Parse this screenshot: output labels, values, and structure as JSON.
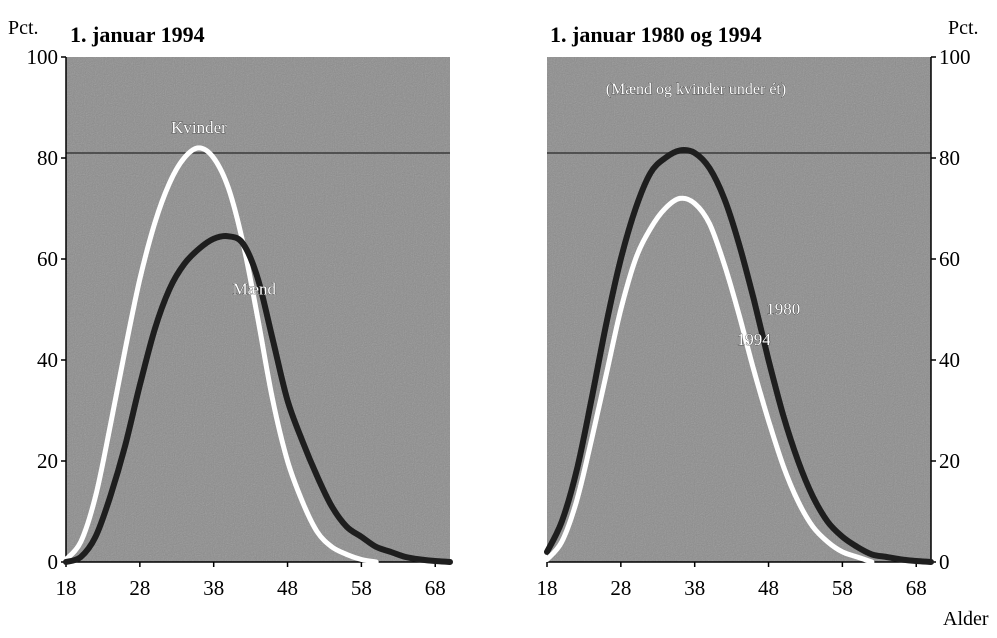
{
  "y_unit_label": "Pct.",
  "x_axis_label": "Alder",
  "colors": {
    "panel_bg": "#8c8c8c",
    "dark_line": "#1e1e1e",
    "light_line": "#ffffff",
    "reference_line": "#3a3a3a"
  },
  "chart_data": [
    {
      "type": "line",
      "title": "1. januar 1994",
      "subtitle": "",
      "ylabel": "Pct.",
      "xlabel": "",
      "xlim": [
        18,
        70
      ],
      "ylim": [
        0,
        100
      ],
      "xticks": [
        18,
        28,
        38,
        48,
        58,
        68
      ],
      "yticks": [
        0,
        20,
        40,
        60,
        80,
        100
      ],
      "reference_line_y": 81,
      "y_axis_side": "left",
      "series": [
        {
          "name": "Kvinder",
          "style": "light",
          "x": [
            18,
            20,
            22,
            24,
            26,
            28,
            30,
            32,
            34,
            36,
            38,
            40,
            42,
            44,
            46,
            48,
            50,
            52,
            54,
            56,
            58,
            60
          ],
          "y": [
            0.5,
            4,
            13,
            27,
            42,
            56,
            67,
            75,
            80,
            82,
            80,
            74,
            63,
            48,
            32,
            20,
            12,
            6,
            3,
            1.5,
            0.5,
            0
          ]
        },
        {
          "name": "Mænd",
          "style": "dark",
          "x": [
            18,
            20,
            22,
            24,
            26,
            28,
            30,
            32,
            34,
            36,
            38,
            40,
            42,
            44,
            46,
            48,
            50,
            52,
            54,
            56,
            58,
            60,
            62,
            64,
            66,
            68,
            70
          ],
          "y": [
            0,
            1,
            5,
            13,
            23,
            35,
            46,
            54,
            59,
            62,
            64,
            64.5,
            63,
            56,
            44,
            32,
            24,
            17,
            11,
            7,
            5,
            3,
            2,
            1,
            0.5,
            0.2,
            0
          ]
        }
      ]
    },
    {
      "type": "line",
      "title": "1. januar 1980 og 1994",
      "subtitle": "(Mænd og kvinder under ét)",
      "ylabel": "Pct.",
      "xlabel": "Alder",
      "xlim": [
        18,
        70
      ],
      "ylim": [
        0,
        100
      ],
      "xticks": [
        18,
        28,
        38,
        48,
        58,
        68
      ],
      "yticks": [
        0,
        20,
        40,
        60,
        80,
        100
      ],
      "reference_line_y": 81,
      "y_axis_side": "right",
      "series": [
        {
          "name": "1980",
          "style": "dark",
          "x": [
            18,
            20,
            22,
            24,
            26,
            28,
            30,
            32,
            34,
            36,
            38,
            40,
            42,
            44,
            46,
            48,
            50,
            52,
            54,
            56,
            58,
            60,
            62,
            64,
            66,
            68,
            70
          ],
          "y": [
            2,
            8,
            18,
            32,
            47,
            60,
            70,
            77,
            80,
            81.5,
            81,
            78,
            72,
            63,
            52,
            40,
            29,
            20,
            13,
            8,
            5,
            3,
            1.5,
            1,
            0.5,
            0.2,
            0
          ]
        },
        {
          "name": "1994",
          "style": "light",
          "x": [
            18,
            20,
            22,
            24,
            26,
            28,
            30,
            32,
            34,
            36,
            38,
            40,
            42,
            44,
            46,
            48,
            50,
            52,
            54,
            56,
            58,
            60,
            62
          ],
          "y": [
            0.5,
            4,
            12,
            24,
            37,
            50,
            60,
            66,
            70,
            72,
            71,
            67,
            59,
            49,
            38,
            28,
            19,
            12,
            7,
            4,
            2,
            1,
            0
          ]
        }
      ]
    }
  ],
  "annotations": [
    {
      "chart": 0,
      "text": "Kvinder",
      "x": 36,
      "y": 85
    },
    {
      "chart": 0,
      "text": "Mænd",
      "x": 43.5,
      "y": 53
    },
    {
      "chart": 1,
      "text": "1980",
      "x": 50,
      "y": 49
    },
    {
      "chart": 1,
      "text": "1994",
      "x": 46,
      "y": 43
    }
  ]
}
